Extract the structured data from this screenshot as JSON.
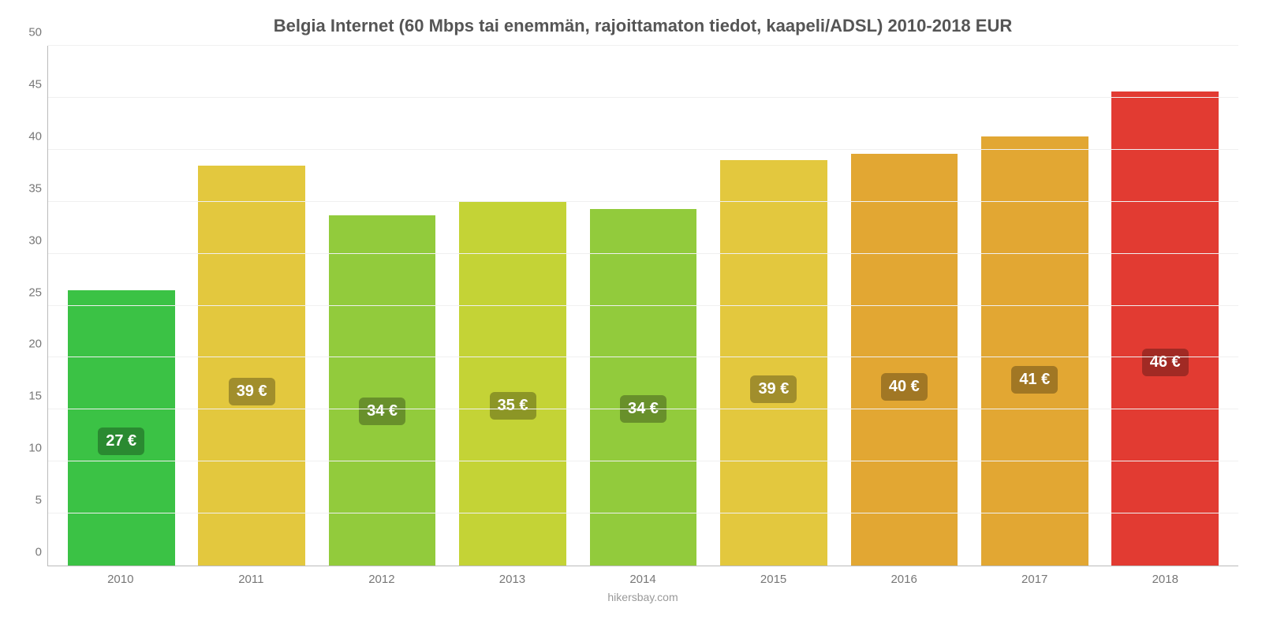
{
  "chart": {
    "type": "bar",
    "title": "Belgia Internet (60 Mbps tai enemmän, rajoittamaton tiedot, kaapeli/ADSL) 2010-2018 EUR",
    "title_fontsize": 22,
    "title_color": "#555555",
    "background_color": "#ffffff",
    "grid_color": "#f0f0f0",
    "axis_color": "#bbbbbb",
    "tick_color": "#777777",
    "tick_fontsize": 15,
    "attribution": "hikersbay.com",
    "attribution_color": "#999999",
    "ylim": [
      0,
      50
    ],
    "ytick_step": 5,
    "yticks": [
      0,
      5,
      10,
      15,
      20,
      25,
      30,
      35,
      40,
      45,
      50
    ],
    "categories": [
      "2010",
      "2011",
      "2012",
      "2013",
      "2014",
      "2015",
      "2016",
      "2017",
      "2018"
    ],
    "values": [
      26.5,
      38.5,
      33.7,
      35.0,
      34.3,
      39.0,
      39.6,
      41.3,
      45.6
    ],
    "value_labels": [
      "27 €",
      "39 €",
      "34 €",
      "35 €",
      "34 €",
      "39 €",
      "40 €",
      "41 €",
      "46 €"
    ],
    "bar_colors": [
      "#3bc245",
      "#e3c83e",
      "#92cb3c",
      "#c4d336",
      "#92cb3c",
      "#e3c83e",
      "#e2a733",
      "#e2a733",
      "#e23b32"
    ],
    "badge_colors": [
      "#2a8a31",
      "#a18e2c",
      "#68902b",
      "#8c9626",
      "#68902b",
      "#a18e2c",
      "#a17724",
      "#a17724",
      "#a12a24"
    ],
    "badge_fontsize": 20,
    "badge_text_color": "#ffffff",
    "bar_width_pct": 82
  }
}
